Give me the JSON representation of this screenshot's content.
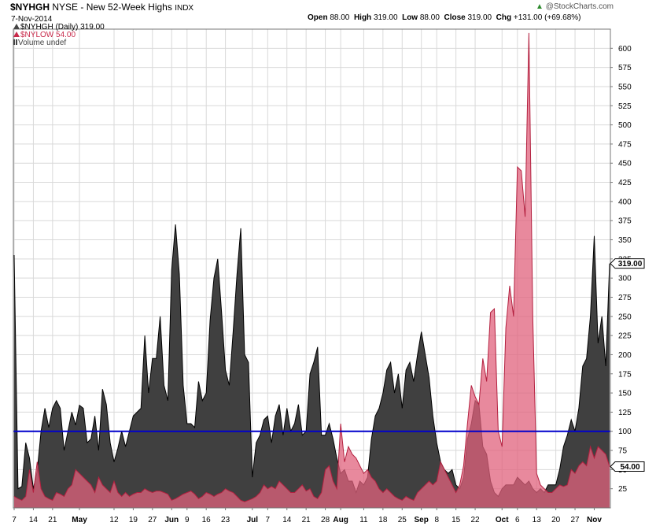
{
  "header": {
    "symbol": "$NYHGH",
    "title_rest": "NYSE - New 52-Week Highs",
    "exchange": "INDX",
    "date": "7-Nov-2014",
    "open_label": "Open",
    "open": "88.00",
    "high_label": "High",
    "high": "319.00",
    "low_label": "Low",
    "low": "88.00",
    "close_label": "Close",
    "close": "319.00",
    "chg_label": "Chg",
    "chg": "+131.00 (+69.68%)",
    "watermark": "@StockCharts.com",
    "watermark_icon": "up-arrow-icon"
  },
  "legend": {
    "high_entry": "$NYHGH (Daily) 319.00",
    "low_entry": "$NYLOW 54.00",
    "vol_entry": "Volume undef"
  },
  "colors": {
    "highs_fill": "#404040",
    "highs_line": "#000000",
    "lows_fill": "#e0617c",
    "lows_line": "#b3203f",
    "reference_line": "#0000cc",
    "grid": "#d9d9d9"
  },
  "chart_data": {
    "type": "area",
    "title": "$NYHGH NYSE - New 52-Week Highs INDX",
    "ylim": [
      0,
      625
    ],
    "y_axis_side": "right",
    "y_ticks": [
      25,
      50,
      75,
      100,
      125,
      150,
      175,
      200,
      225,
      250,
      275,
      300,
      325,
      350,
      375,
      400,
      425,
      450,
      475,
      500,
      525,
      550,
      575,
      600
    ],
    "x_tick_labels": [
      "7",
      "14",
      "21",
      "May",
      "12",
      "19",
      "27",
      "Jun",
      "9",
      "16",
      "23",
      "Jul",
      "7",
      "14",
      "21",
      "28",
      "Aug",
      "11",
      "18",
      "25",
      "Sep",
      "8",
      "15",
      "22",
      "Oct",
      "6",
      "13",
      "20",
      "27",
      "Nov"
    ],
    "x_tick_index": [
      0,
      5,
      10,
      17,
      26,
      31,
      36,
      41,
      45,
      50,
      55,
      62,
      66,
      71,
      76,
      81,
      85,
      91,
      96,
      101,
      106,
      110,
      115,
      120,
      127,
      131,
      136,
      141,
      146,
      151
    ],
    "grid": true,
    "reference_line": 100,
    "series": [
      {
        "name": "$NYHGH",
        "values": [
          330,
          25,
          28,
          85,
          65,
          25,
          48,
          100,
          130,
          105,
          130,
          140,
          130,
          75,
          100,
          125,
          108,
          134,
          130,
          85,
          90,
          120,
          75,
          155,
          135,
          85,
          60,
          78,
          100,
          80,
          100,
          120,
          125,
          130,
          225,
          150,
          195,
          195,
          250,
          160,
          140,
          310,
          370,
          305,
          160,
          110,
          110,
          105,
          165,
          140,
          150,
          245,
          300,
          325,
          255,
          180,
          160,
          230,
          305,
          365,
          200,
          190,
          40,
          85,
          95,
          115,
          120,
          85,
          120,
          135,
          95,
          130,
          100,
          110,
          135,
          95,
          100,
          175,
          190,
          210,
          95,
          95,
          110,
          90,
          65,
          45,
          50,
          35,
          35,
          20,
          35,
          30,
          40,
          90,
          120,
          130,
          150,
          180,
          190,
          150,
          175,
          130,
          180,
          190,
          165,
          200,
          230,
          200,
          170,
          120,
          85,
          60,
          50,
          45,
          50,
          30,
          25,
          40,
          90,
          110,
          140,
          135,
          80,
          70,
          35,
          20,
          15,
          25,
          30,
          30,
          30,
          40,
          35,
          30,
          35,
          25,
          20,
          25,
          20,
          30,
          30,
          30,
          50,
          80,
          95,
          115,
          100,
          130,
          185,
          195,
          250,
          355,
          215,
          250,
          185,
          319
        ]
      },
      {
        "name": "$NYLOW",
        "values": [
          15,
          12,
          10,
          15,
          50,
          20,
          60,
          25,
          15,
          12,
          10,
          20,
          18,
          15,
          25,
          30,
          50,
          45,
          40,
          35,
          30,
          20,
          40,
          30,
          25,
          20,
          35,
          20,
          15,
          20,
          15,
          18,
          20,
          20,
          25,
          22,
          20,
          22,
          22,
          20,
          18,
          10,
          12,
          15,
          18,
          20,
          22,
          18,
          12,
          15,
          20,
          18,
          15,
          18,
          20,
          25,
          22,
          20,
          15,
          10,
          8,
          10,
          12,
          15,
          20,
          30,
          25,
          28,
          25,
          35,
          30,
          25,
          20,
          20,
          25,
          30,
          22,
          25,
          15,
          12,
          20,
          50,
          55,
          35,
          25,
          110,
          60,
          80,
          70,
          65,
          55,
          45,
          50,
          40,
          35,
          25,
          20,
          25,
          20,
          15,
          12,
          10,
          15,
          12,
          10,
          20,
          25,
          30,
          35,
          30,
          35,
          60,
          50,
          40,
          30,
          20,
          30,
          55,
          110,
          160,
          145,
          135,
          195,
          165,
          255,
          260,
          100,
          80,
          235,
          290,
          250,
          445,
          440,
          380,
          620,
          250,
          45,
          30,
          25,
          20,
          20,
          25,
          30,
          28,
          30,
          50,
          45,
          55,
          60,
          55,
          80,
          65,
          80,
          75,
          70,
          54
        ]
      }
    ],
    "last_value_labels": [
      "319.00",
      "54.00"
    ]
  }
}
